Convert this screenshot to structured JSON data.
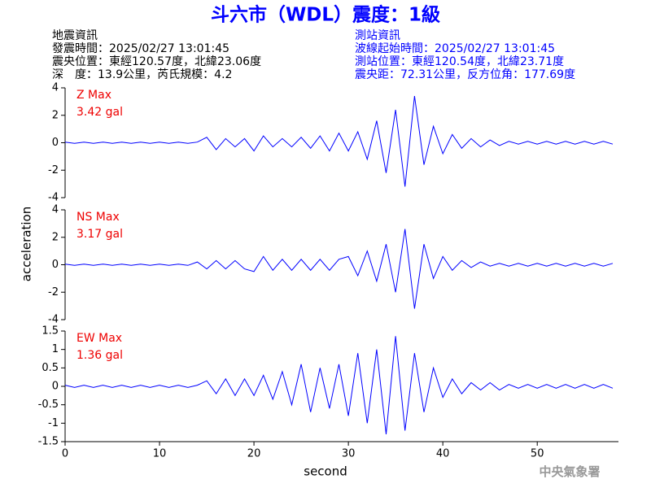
{
  "header": {
    "title": "斗六市（WDL）震度：1級",
    "left": [
      "地震資訊",
      "發震時間：2025/02/27 13:01:45",
      "震央位置：東經120.57度，北緯23.06度",
      "深　度：13.9公里，芮氏規模：4.2"
    ],
    "right": [
      "測站資訊",
      "波線起始時間：2025/02/27 13:01:45",
      "測站位置：東經120.54度，北緯23.71度",
      "震央距：72.31公里，反方位角：177.69度"
    ]
  },
  "footer": "中央氣象署",
  "chart_data": [
    {
      "type": "line",
      "annotations": [
        "Z Max",
        "3.42 gal"
      ],
      "color": "#0000ff",
      "x": [
        0,
        1,
        2,
        3,
        4,
        5,
        6,
        7,
        8,
        9,
        10,
        11,
        12,
        13,
        14,
        15,
        16,
        17,
        18,
        19,
        20,
        21,
        22,
        23,
        24,
        25,
        26,
        27,
        28,
        29,
        30,
        31,
        32,
        33,
        34,
        35,
        36,
        37,
        38,
        39,
        40,
        41,
        42,
        43,
        44,
        45,
        46,
        47,
        48,
        49,
        50,
        51,
        52,
        53,
        54,
        55,
        56,
        57,
        58
      ],
      "values": [
        0.05,
        -0.05,
        0.05,
        -0.05,
        0.05,
        -0.05,
        0.05,
        -0.05,
        0.05,
        -0.05,
        0.05,
        -0.05,
        0.05,
        -0.05,
        0.05,
        0.4,
        -0.5,
        0.3,
        -0.3,
        0.3,
        -0.6,
        0.5,
        -0.3,
        0.3,
        -0.3,
        0.4,
        -0.4,
        0.5,
        -0.6,
        0.7,
        -0.6,
        0.8,
        -1.2,
        1.6,
        -2.2,
        2.4,
        -3.2,
        3.4,
        -1.6,
        1.2,
        -0.8,
        0.6,
        -0.4,
        0.3,
        -0.3,
        0.2,
        -0.2,
        0.1,
        -0.1,
        0.1,
        -0.1,
        0.1,
        -0.1,
        0.1,
        -0.1,
        0.1,
        -0.1,
        0.1,
        -0.1
      ],
      "ylim": [
        -4,
        4
      ],
      "yticks": [
        -4,
        -2,
        0,
        2,
        4
      ]
    },
    {
      "type": "line",
      "annotations": [
        "NS Max",
        "3.17 gal"
      ],
      "color": "#0000ff",
      "ylabel": "acceleration",
      "x": [
        0,
        1,
        2,
        3,
        4,
        5,
        6,
        7,
        8,
        9,
        10,
        11,
        12,
        13,
        14,
        15,
        16,
        17,
        18,
        19,
        20,
        21,
        22,
        23,
        24,
        25,
        26,
        27,
        28,
        29,
        30,
        31,
        32,
        33,
        34,
        35,
        36,
        37,
        38,
        39,
        40,
        41,
        42,
        43,
        44,
        45,
        46,
        47,
        48,
        49,
        50,
        51,
        52,
        53,
        54,
        55,
        56,
        57,
        58
      ],
      "values": [
        0.05,
        -0.05,
        0.05,
        -0.05,
        0.05,
        -0.05,
        0.05,
        -0.05,
        0.05,
        -0.05,
        0.05,
        -0.05,
        0.05,
        -0.05,
        0.2,
        -0.3,
        0.3,
        -0.3,
        0.3,
        -0.3,
        -0.5,
        0.6,
        -0.4,
        0.4,
        -0.4,
        0.4,
        -0.4,
        0.4,
        -0.4,
        0.4,
        0.6,
        -0.8,
        1,
        -1.2,
        1.5,
        -2,
        2.6,
        -3.2,
        1.5,
        -1,
        0.6,
        -0.4,
        0.3,
        -0.2,
        0.2,
        -0.1,
        0.1,
        -0.1,
        0.1,
        -0.1,
        0.1,
        -0.1,
        0.1,
        -0.1,
        0.1,
        -0.1,
        0.1,
        -0.1,
        0.1
      ],
      "ylim": [
        -4,
        4
      ],
      "yticks": [
        -4,
        -2,
        0,
        2,
        4
      ]
    },
    {
      "type": "line",
      "annotations": [
        "EW Max",
        "1.36 gal"
      ],
      "color": "#0000ff",
      "xlabel": "second",
      "x": [
        0,
        1,
        2,
        3,
        4,
        5,
        6,
        7,
        8,
        9,
        10,
        11,
        12,
        13,
        14,
        15,
        16,
        17,
        18,
        19,
        20,
        21,
        22,
        23,
        24,
        25,
        26,
        27,
        28,
        29,
        30,
        31,
        32,
        33,
        34,
        35,
        36,
        37,
        38,
        39,
        40,
        41,
        42,
        43,
        44,
        45,
        46,
        47,
        48,
        49,
        50,
        51,
        52,
        53,
        54,
        55,
        56,
        57,
        58
      ],
      "values": [
        0.03,
        -0.03,
        0.03,
        -0.03,
        0.03,
        -0.03,
        0.03,
        -0.03,
        0.03,
        -0.03,
        0.03,
        -0.03,
        0.03,
        -0.03,
        0.03,
        0.15,
        -0.2,
        0.2,
        -0.25,
        0.2,
        -0.25,
        0.3,
        -0.35,
        0.4,
        -0.5,
        0.6,
        -0.7,
        0.5,
        -0.6,
        0.6,
        -0.8,
        0.9,
        -1.0,
        1.0,
        -1.3,
        1.36,
        -1.2,
        0.9,
        -0.7,
        0.5,
        -0.3,
        0.2,
        -0.2,
        0.1,
        -0.1,
        0.1,
        -0.1,
        0.05,
        -0.05,
        0.05,
        -0.05,
        0.05,
        -0.05,
        0.05,
        -0.05,
        0.05,
        -0.05,
        0.05,
        -0.05
      ],
      "ylim": [
        -1.5,
        1.5
      ],
      "yticks": [
        -1.5,
        -1,
        -0.5,
        0,
        0.5,
        1,
        1.5
      ],
      "xlim": [
        0,
        58.6
      ],
      "xticks": [
        0,
        10,
        20,
        30,
        40,
        50
      ]
    }
  ]
}
